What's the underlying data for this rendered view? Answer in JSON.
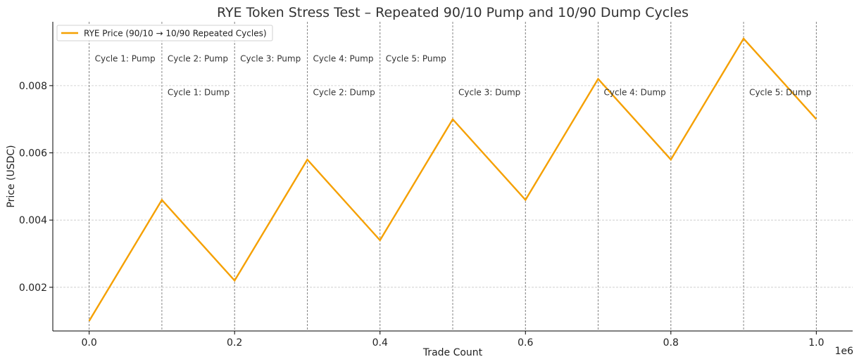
{
  "chart_data": {
    "type": "line",
    "title": "RYE Token Stress Test – Repeated 90/10 Pump and 10/90 Dump Cycles",
    "xlabel": "Trade Count",
    "ylabel": "Price (USDC)",
    "x_offset_label": "1e6",
    "xlim": [
      -0.05,
      1.05
    ],
    "ylim": [
      0.0007,
      0.0099
    ],
    "x_ticks": [
      0.0,
      0.2,
      0.4,
      0.6,
      0.8,
      1.0
    ],
    "x_tick_labels": [
      "0.0",
      "0.2",
      "0.4",
      "0.6",
      "0.8",
      "1.0"
    ],
    "y_ticks": [
      0.002,
      0.004,
      0.006,
      0.008
    ],
    "y_tick_labels": [
      "0.002",
      "0.004",
      "0.006",
      "0.008"
    ],
    "grid": true,
    "legend_position": "top-left",
    "series": [
      {
        "name": "RYE Price (90/10 → 10/90 Repeated Cycles)",
        "color": "#f5a000",
        "x": [
          0.0,
          0.1,
          0.2,
          0.3,
          0.4,
          0.5,
          0.6,
          0.7,
          0.8,
          0.9,
          1.0
        ],
        "y": [
          0.001,
          0.0046,
          0.0022,
          0.0058,
          0.0034,
          0.007,
          0.0046,
          0.0082,
          0.0058,
          0.0094,
          0.007
        ]
      }
    ],
    "cycle_lines": [
      0.0,
      0.1,
      0.2,
      0.3,
      0.4,
      0.5,
      0.6,
      0.7,
      0.8,
      0.9,
      1.0
    ],
    "annotations": [
      {
        "text": "Cycle 1: Pump",
        "x": 0.0,
        "y": 0.0088
      },
      {
        "text": "Cycle 2: Pump",
        "x": 0.1,
        "y": 0.0088
      },
      {
        "text": "Cycle 3: Pump",
        "x": 0.2,
        "y": 0.0088
      },
      {
        "text": "Cycle 4: Pump",
        "x": 0.3,
        "y": 0.0088
      },
      {
        "text": "Cycle 5: Pump",
        "x": 0.4,
        "y": 0.0088
      },
      {
        "text": "Cycle 1: Dump",
        "x": 0.1,
        "y": 0.0078
      },
      {
        "text": "Cycle 2: Dump",
        "x": 0.3,
        "y": 0.0078
      },
      {
        "text": "Cycle 3: Dump",
        "x": 0.5,
        "y": 0.0078
      },
      {
        "text": "Cycle 4: Dump",
        "x": 0.7,
        "y": 0.0078
      },
      {
        "text": "Cycle 5: Dump",
        "x": 0.9,
        "y": 0.0078
      }
    ]
  }
}
